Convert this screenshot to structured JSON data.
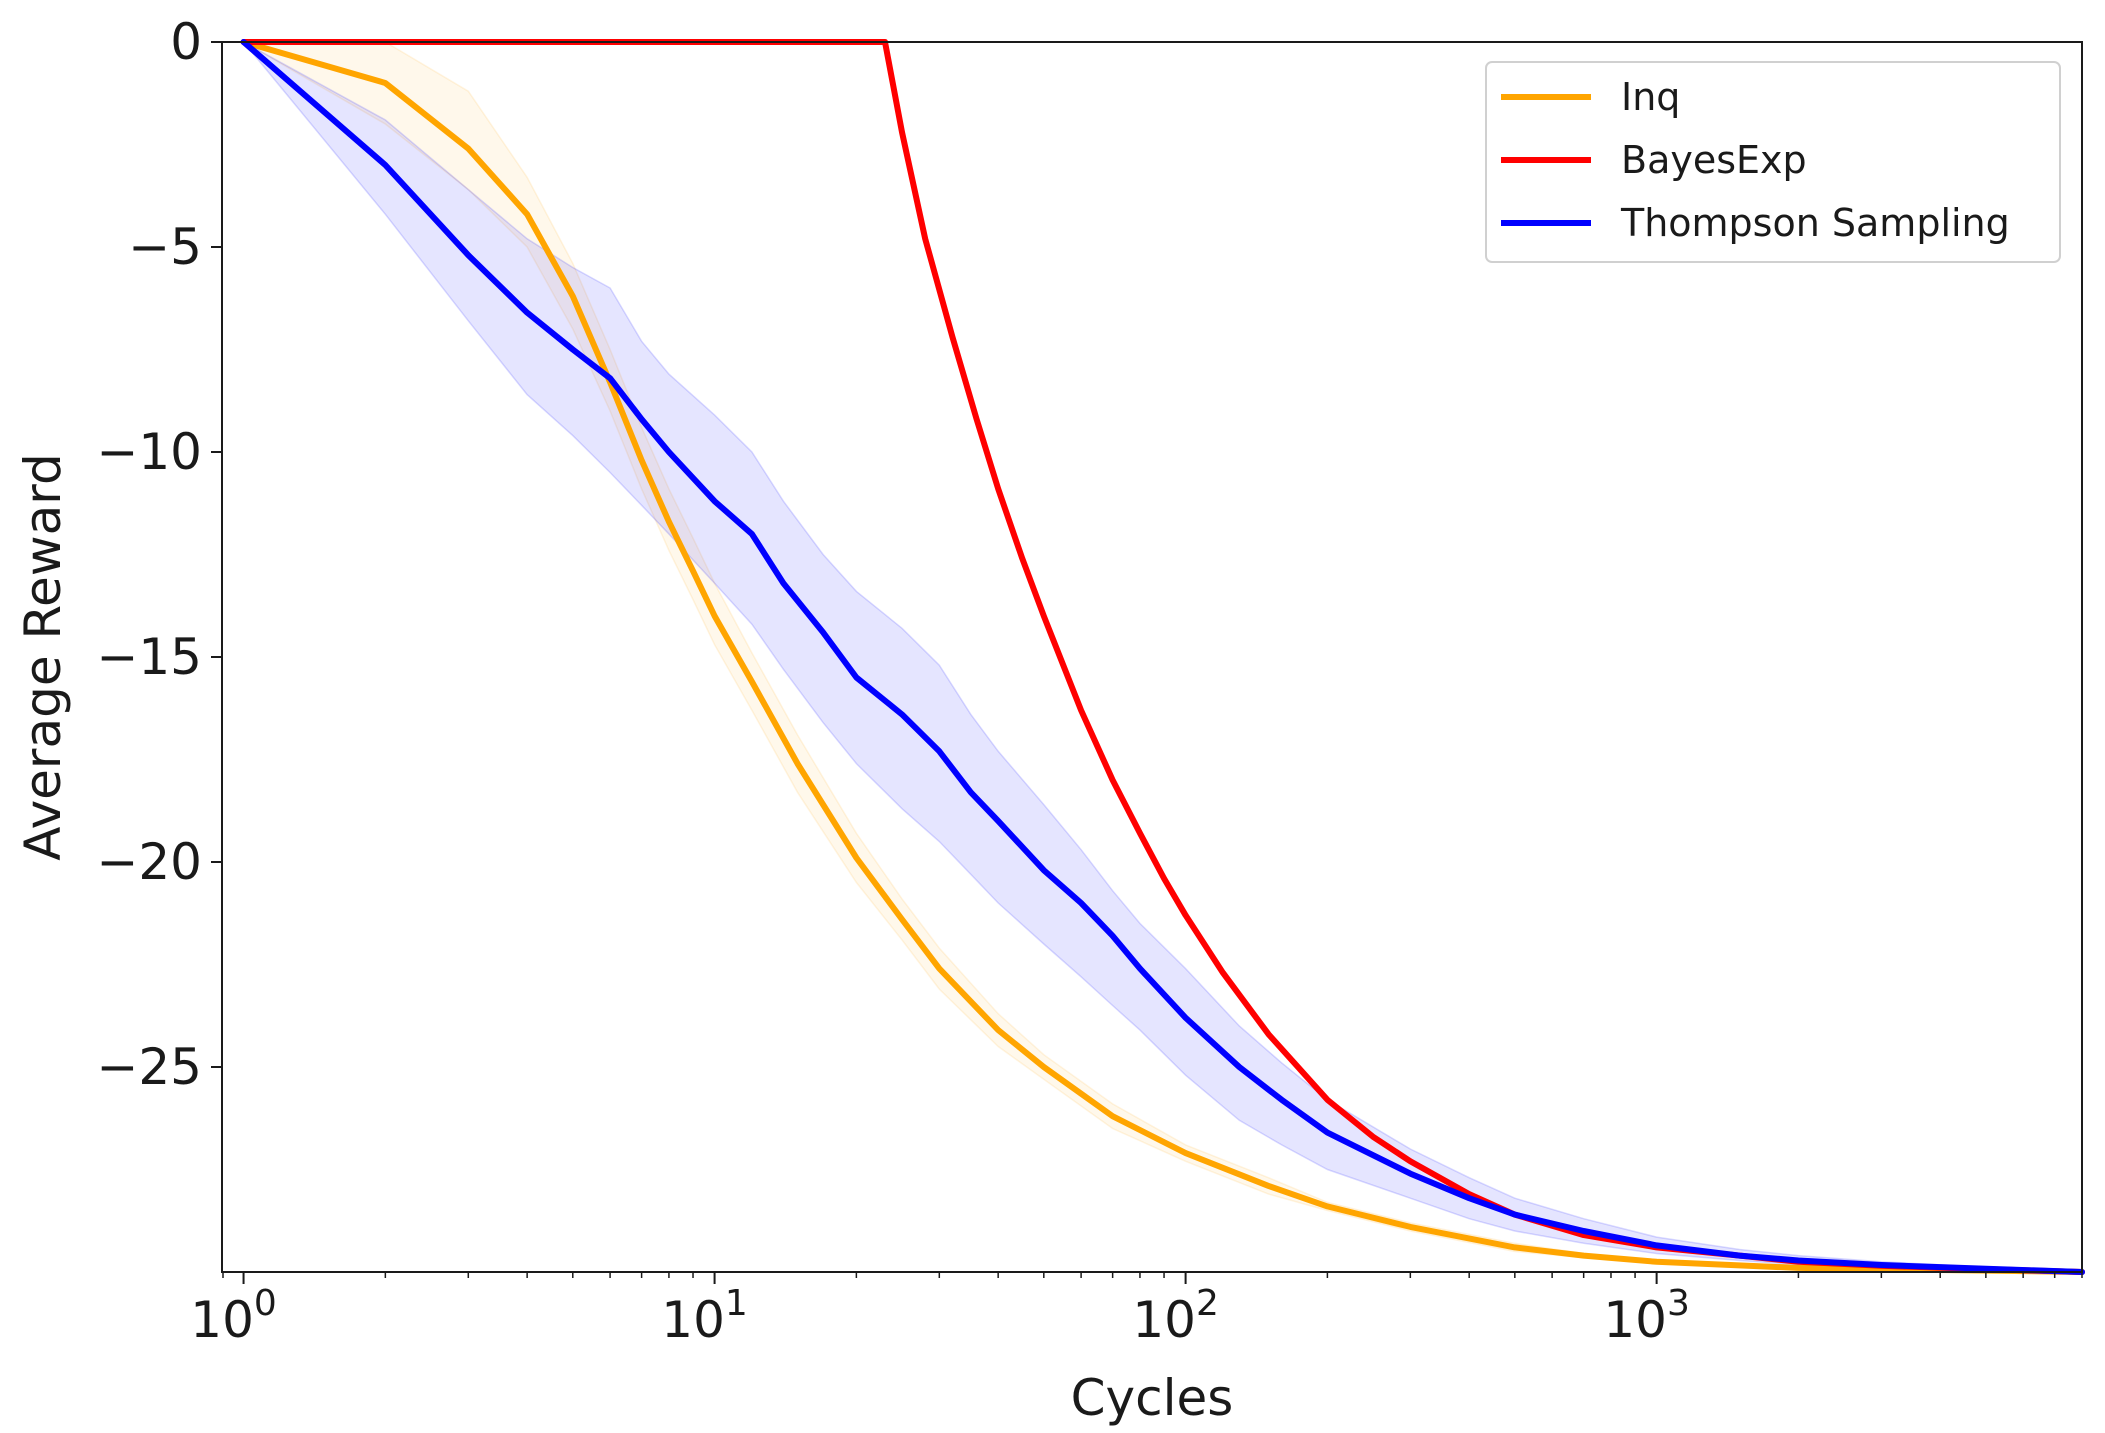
{
  "chart_data": {
    "type": "line",
    "title": "",
    "xlabel": "Cycles",
    "ylabel": "Average Reward",
    "xscale": "log",
    "xlim": [
      0.9,
      8000
    ],
    "ylim": [
      -30,
      0
    ],
    "grid": false,
    "legend_position": "top-right",
    "x_ticks": [
      {
        "value": 1,
        "base": "10",
        "exp": "0"
      },
      {
        "value": 10,
        "base": "10",
        "exp": "1"
      },
      {
        "value": 100,
        "base": "10",
        "exp": "2"
      },
      {
        "value": 1000,
        "base": "10",
        "exp": "3"
      }
    ],
    "y_ticks": [
      {
        "value": 0,
        "label": "0"
      },
      {
        "value": -5,
        "label": "−5"
      },
      {
        "value": -10,
        "label": "−10"
      },
      {
        "value": -15,
        "label": "−15"
      },
      {
        "value": -20,
        "label": "−20"
      },
      {
        "value": -25,
        "label": "−25"
      }
    ],
    "series": [
      {
        "name": "Inq",
        "color": "#ffa500",
        "band_opacity": 0.08,
        "points": [
          [
            1,
            0
          ],
          [
            2,
            -1.0
          ],
          [
            3,
            -2.6
          ],
          [
            4,
            -4.2
          ],
          [
            5,
            -6.2
          ],
          [
            6,
            -8.3
          ],
          [
            7,
            -10.2
          ],
          [
            8,
            -11.7
          ],
          [
            9,
            -12.9
          ],
          [
            10,
            -14.0
          ],
          [
            12,
            -15.6
          ],
          [
            15,
            -17.6
          ],
          [
            20,
            -19.9
          ],
          [
            25,
            -21.4
          ],
          [
            30,
            -22.6
          ],
          [
            40,
            -24.1
          ],
          [
            50,
            -25.0
          ],
          [
            70,
            -26.2
          ],
          [
            100,
            -27.1
          ],
          [
            150,
            -27.9
          ],
          [
            200,
            -28.4
          ],
          [
            300,
            -28.9
          ],
          [
            500,
            -29.4
          ],
          [
            700,
            -29.6
          ],
          [
            1000,
            -29.75
          ],
          [
            2000,
            -29.9
          ],
          [
            4000,
            -29.95
          ],
          [
            8000,
            -30.0
          ]
        ],
        "band_upper": [
          [
            1,
            0
          ],
          [
            2,
            0
          ],
          [
            3,
            -1.2
          ],
          [
            4,
            -3.3
          ],
          [
            5,
            -5.4
          ],
          [
            6,
            -7.5
          ],
          [
            7,
            -9.4
          ],
          [
            8,
            -10.9
          ],
          [
            9,
            -12.1
          ],
          [
            10,
            -13.2
          ],
          [
            12,
            -14.9
          ],
          [
            15,
            -16.9
          ],
          [
            20,
            -19.3
          ],
          [
            25,
            -20.9
          ],
          [
            30,
            -22.1
          ],
          [
            40,
            -23.7
          ],
          [
            50,
            -24.7
          ],
          [
            70,
            -25.9
          ],
          [
            100,
            -26.9
          ],
          [
            150,
            -27.7
          ],
          [
            200,
            -28.3
          ],
          [
            300,
            -28.8
          ],
          [
            500,
            -29.3
          ],
          [
            700,
            -29.55
          ],
          [
            1000,
            -29.72
          ],
          [
            2000,
            -29.88
          ],
          [
            4000,
            -29.94
          ],
          [
            8000,
            -30.0
          ]
        ],
        "band_lower": [
          [
            1,
            0
          ],
          [
            2,
            -2.0
          ],
          [
            3,
            -3.6
          ],
          [
            4,
            -5.0
          ],
          [
            5,
            -7.0
          ],
          [
            6,
            -9.0
          ],
          [
            7,
            -10.9
          ],
          [
            8,
            -12.4
          ],
          [
            9,
            -13.6
          ],
          [
            10,
            -14.7
          ],
          [
            12,
            -16.3
          ],
          [
            15,
            -18.3
          ],
          [
            20,
            -20.5
          ],
          [
            25,
            -21.9
          ],
          [
            30,
            -23.1
          ],
          [
            40,
            -24.5
          ],
          [
            50,
            -25.3
          ],
          [
            70,
            -26.5
          ],
          [
            100,
            -27.3
          ],
          [
            150,
            -28.1
          ],
          [
            200,
            -28.5
          ],
          [
            300,
            -29.0
          ],
          [
            500,
            -29.5
          ],
          [
            700,
            -29.65
          ],
          [
            1000,
            -29.78
          ],
          [
            2000,
            -29.92
          ],
          [
            4000,
            -29.96
          ],
          [
            8000,
            -30.0
          ]
        ]
      },
      {
        "name": "BayesExp",
        "color": "#ff0000",
        "points": [
          [
            1,
            0
          ],
          [
            10,
            0
          ],
          [
            20,
            0
          ],
          [
            23,
            0
          ],
          [
            25,
            -2.2
          ],
          [
            28,
            -4.8
          ],
          [
            32,
            -7.2
          ],
          [
            36,
            -9.2
          ],
          [
            40,
            -10.9
          ],
          [
            45,
            -12.6
          ],
          [
            50,
            -14.0
          ],
          [
            60,
            -16.3
          ],
          [
            70,
            -18.0
          ],
          [
            80,
            -19.3
          ],
          [
            90,
            -20.4
          ],
          [
            100,
            -21.3
          ],
          [
            120,
            -22.7
          ],
          [
            150,
            -24.2
          ],
          [
            200,
            -25.8
          ],
          [
            250,
            -26.7
          ],
          [
            300,
            -27.3
          ],
          [
            400,
            -28.1
          ],
          [
            500,
            -28.6
          ],
          [
            700,
            -29.1
          ],
          [
            1000,
            -29.4
          ],
          [
            1500,
            -29.6
          ],
          [
            2000,
            -29.75
          ],
          [
            3000,
            -29.85
          ],
          [
            5000,
            -29.93
          ],
          [
            8000,
            -30.0
          ]
        ]
      },
      {
        "name": "Thompson Sampling",
        "color": "#0000ff",
        "band_opacity": 0.1,
        "points": [
          [
            1,
            0
          ],
          [
            2,
            -3.0
          ],
          [
            3,
            -5.2
          ],
          [
            4,
            -6.6
          ],
          [
            5,
            -7.5
          ],
          [
            6,
            -8.2
          ],
          [
            7,
            -9.2
          ],
          [
            8,
            -10.0
          ],
          [
            10,
            -11.2
          ],
          [
            12,
            -12.0
          ],
          [
            14,
            -13.2
          ],
          [
            17,
            -14.4
          ],
          [
            20,
            -15.5
          ],
          [
            25,
            -16.4
          ],
          [
            30,
            -17.3
          ],
          [
            35,
            -18.3
          ],
          [
            40,
            -19.0
          ],
          [
            50,
            -20.2
          ],
          [
            60,
            -21.0
          ],
          [
            70,
            -21.8
          ],
          [
            80,
            -22.6
          ],
          [
            100,
            -23.8
          ],
          [
            130,
            -25.0
          ],
          [
            160,
            -25.8
          ],
          [
            200,
            -26.6
          ],
          [
            300,
            -27.6
          ],
          [
            400,
            -28.2
          ],
          [
            500,
            -28.6
          ],
          [
            700,
            -29.0
          ],
          [
            1000,
            -29.35
          ],
          [
            1500,
            -29.6
          ],
          [
            2000,
            -29.72
          ],
          [
            3000,
            -29.83
          ],
          [
            5000,
            -29.92
          ],
          [
            8000,
            -30.0
          ]
        ],
        "band_upper": [
          [
            1,
            0
          ],
          [
            2,
            -1.9
          ],
          [
            3,
            -3.6
          ],
          [
            4,
            -4.8
          ],
          [
            5,
            -5.5
          ],
          [
            6,
            -6.0
          ],
          [
            7,
            -7.3
          ],
          [
            8,
            -8.1
          ],
          [
            10,
            -9.1
          ],
          [
            12,
            -10.0
          ],
          [
            14,
            -11.2
          ],
          [
            17,
            -12.5
          ],
          [
            20,
            -13.4
          ],
          [
            25,
            -14.3
          ],
          [
            30,
            -15.2
          ],
          [
            35,
            -16.4
          ],
          [
            40,
            -17.3
          ],
          [
            50,
            -18.6
          ],
          [
            60,
            -19.7
          ],
          [
            70,
            -20.7
          ],
          [
            80,
            -21.5
          ],
          [
            100,
            -22.6
          ],
          [
            130,
            -24.0
          ],
          [
            160,
            -24.9
          ],
          [
            200,
            -25.8
          ],
          [
            300,
            -27.0
          ],
          [
            400,
            -27.7
          ],
          [
            500,
            -28.2
          ],
          [
            700,
            -28.7
          ],
          [
            1000,
            -29.15
          ],
          [
            1500,
            -29.45
          ],
          [
            2000,
            -29.6
          ],
          [
            3000,
            -29.75
          ],
          [
            5000,
            -29.88
          ],
          [
            8000,
            -29.98
          ]
        ],
        "band_lower": [
          [
            1,
            0
          ],
          [
            2,
            -4.2
          ],
          [
            3,
            -6.8
          ],
          [
            4,
            -8.6
          ],
          [
            5,
            -9.6
          ],
          [
            6,
            -10.5
          ],
          [
            7,
            -11.3
          ],
          [
            8,
            -12.0
          ],
          [
            10,
            -13.2
          ],
          [
            12,
            -14.2
          ],
          [
            14,
            -15.3
          ],
          [
            17,
            -16.6
          ],
          [
            20,
            -17.6
          ],
          [
            25,
            -18.7
          ],
          [
            30,
            -19.5
          ],
          [
            35,
            -20.3
          ],
          [
            40,
            -21.0
          ],
          [
            50,
            -22.0
          ],
          [
            60,
            -22.8
          ],
          [
            70,
            -23.5
          ],
          [
            80,
            -24.1
          ],
          [
            100,
            -25.2
          ],
          [
            130,
            -26.3
          ],
          [
            160,
            -26.9
          ],
          [
            200,
            -27.5
          ],
          [
            300,
            -28.2
          ],
          [
            400,
            -28.7
          ],
          [
            500,
            -29.0
          ],
          [
            700,
            -29.3
          ],
          [
            1000,
            -29.55
          ],
          [
            1500,
            -29.72
          ],
          [
            2000,
            -29.82
          ],
          [
            3000,
            -29.9
          ],
          [
            5000,
            -29.96
          ],
          [
            8000,
            -30.0
          ]
        ]
      }
    ]
  }
}
